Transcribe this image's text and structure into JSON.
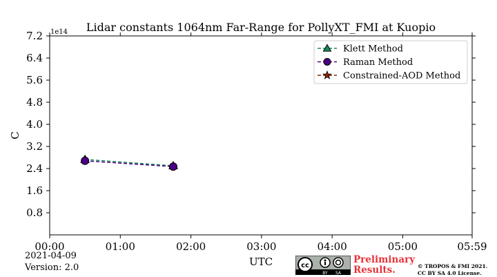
{
  "chart_data": {
    "type": "line",
    "title": "Lidar constants 1064nm Far-Range for PollyXT_FMI at Kuopio",
    "xlabel": "UTC",
    "ylabel": "C",
    "y_scale_label": "1e14",
    "xlim": [
      0,
      359
    ],
    "ylim": [
      0,
      7.2
    ],
    "x_ticks": [
      {
        "value": 0,
        "label": "00:00"
      },
      {
        "value": 60,
        "label": "01:00"
      },
      {
        "value": 120,
        "label": "02:00"
      },
      {
        "value": 180,
        "label": "03:00"
      },
      {
        "value": 240,
        "label": "04:00"
      },
      {
        "value": 300,
        "label": "05:00"
      },
      {
        "value": 359,
        "label": "05:59"
      }
    ],
    "y_ticks": [
      {
        "value": 0.8,
        "label": "0.8"
      },
      {
        "value": 1.6,
        "label": "1.6"
      },
      {
        "value": 2.4,
        "label": "2.4"
      },
      {
        "value": 3.2,
        "label": "3.2"
      },
      {
        "value": 4.0,
        "label": "4.0"
      },
      {
        "value": 4.8,
        "label": "4.8"
      },
      {
        "value": 5.6,
        "label": "5.6"
      },
      {
        "value": 6.4,
        "label": "6.4"
      },
      {
        "value": 7.2,
        "label": "7.2"
      }
    ],
    "legend_position": "top-right",
    "grid": false,
    "series": [
      {
        "name": "Klett Method",
        "color": "#1a8a5a",
        "marker": "triangle",
        "x": [
          30,
          105
        ],
        "y": [
          2.73,
          2.5
        ]
      },
      {
        "name": "Raman Method",
        "color": "#4b0082",
        "marker": "circle",
        "x": [
          30,
          105
        ],
        "y": [
          2.68,
          2.47
        ]
      },
      {
        "name": "Constrained-AOD Method",
        "color": "#8b2500",
        "marker": "star",
        "x": [],
        "y": []
      }
    ]
  },
  "footer": {
    "date": "2021-04-09",
    "version": "Version: 2.0",
    "preliminary_line1": "Preliminary",
    "preliminary_line2": "Results.",
    "copyright_line1": "© TROPOS & FMI 2021.",
    "copyright_line2": "CC BY SA 4.0 License.",
    "cc_by": "BY",
    "cc_sa": "SA"
  }
}
